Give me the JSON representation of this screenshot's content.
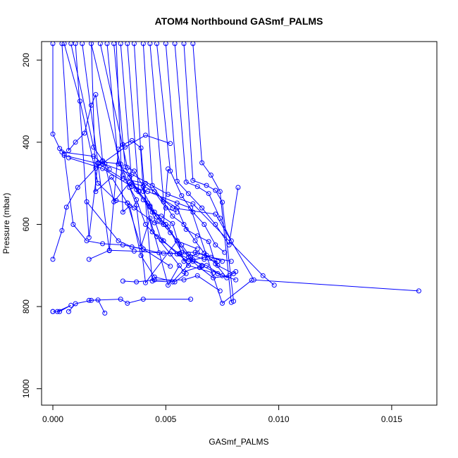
{
  "chart_data": {
    "type": "scatter",
    "title": "ATOM4 Northbound GASmf_PALMS",
    "xlabel": "GASmf_PALMS",
    "ylabel": "Pressure (mbar)",
    "xlim": [
      -0.0005,
      0.017
    ],
    "ylim": [
      1040,
      155
    ],
    "y_reversed": true,
    "xticks": [
      0.0,
      0.005,
      0.01,
      0.015
    ],
    "xtick_labels": [
      "0.000",
      "0.005",
      "0.010",
      "0.015"
    ],
    "yticks": [
      200,
      400,
      600,
      800,
      1000
    ],
    "ytick_labels": [
      "200",
      "400",
      "600",
      "800",
      "1000"
    ],
    "grid": false,
    "legend": "none",
    "marker": "open-circle",
    "series_color": "#0000ff",
    "series": [
      {
        "x": [
          0.0,
          0.0002,
          0.0008,
          0.0003,
          0.0
        ],
        "y": [
          812,
          812,
          797,
          812,
          812
        ]
      },
      {
        "x": [
          0.0007,
          0.001,
          0.0017,
          0.002,
          0.0023
        ],
        "y": [
          812,
          793,
          785,
          784,
          816
        ]
      },
      {
        "x": [
          0.0016,
          0.003,
          0.0033,
          0.004,
          0.0061
        ],
        "y": [
          785,
          782,
          792,
          782,
          782
        ]
      },
      {
        "x": [
          0.0,
          0.0004,
          0.0006,
          0.0011,
          0.0019,
          0.0032,
          0.0041,
          0.0052
        ],
        "y": [
          685,
          615,
          558,
          510,
          463,
          412,
          383,
          403
        ]
      },
      {
        "x": [
          0.0,
          0.0,
          0.0003,
          0.0005,
          0.0009,
          0.0015,
          0.0022,
          0.0031,
          0.004,
          0.0052
        ],
        "y": [
          160,
          380,
          415,
          428,
          600,
          640,
          647,
          650,
          660,
          702
        ]
      },
      {
        "x": [
          0.0004,
          0.0007,
          0.001,
          0.0014,
          0.0017,
          0.0019,
          0.0022,
          0.0025
        ],
        "y": [
          160,
          420,
          400,
          378,
          310,
          284,
          445,
          466
        ]
      },
      {
        "x": [
          0.0005,
          0.0012,
          0.002,
          0.0028,
          0.0033,
          0.0036,
          0.0045,
          0.0049,
          0.0051
        ],
        "y": [
          160,
          300,
          500,
          542,
          548,
          560,
          596,
          600,
          465
        ]
      },
      {
        "x": [
          0.0008,
          0.0018,
          0.0023,
          0.0027,
          0.0034,
          0.004,
          0.0045,
          0.005,
          0.0055
        ],
        "y": [
          160,
          412,
          452,
          545,
          498,
          507,
          520,
          560,
          570
        ]
      },
      {
        "x": [
          0.001,
          0.0016,
          0.002,
          0.0022,
          0.003,
          0.0037,
          0.0041,
          0.0055,
          0.0064
        ],
        "y": [
          160,
          632,
          450,
          448,
          453,
          553,
          742,
          640,
          660
        ]
      },
      {
        "x": [
          0.0013,
          0.0025,
          0.0029,
          0.0031,
          0.0035,
          0.0039,
          0.0044,
          0.0053,
          0.0062
        ],
        "y": [
          160,
          664,
          417,
          406,
          396,
          414,
          738,
          740,
          686
        ]
      },
      {
        "x": [
          0.0017,
          0.0031,
          0.0034,
          0.0037,
          0.0041,
          0.0046,
          0.0052,
          0.0058,
          0.0066
        ],
        "y": [
          160,
          480,
          510,
          540,
          600,
          630,
          672,
          715,
          702
        ]
      },
      {
        "x": [
          0.0021,
          0.0033,
          0.0036,
          0.004,
          0.0044,
          0.0049,
          0.0055,
          0.006,
          0.0067
        ],
        "y": [
          160,
          462,
          470,
          508,
          618,
          640,
          672,
          690,
          680
        ]
      },
      {
        "x": [
          0.0024,
          0.0029,
          0.0034,
          0.0038,
          0.0043,
          0.0048,
          0.0056,
          0.0062,
          0.0068,
          0.0075
        ],
        "y": [
          160,
          453,
          485,
          520,
          555,
          638,
          672,
          690,
          700,
          725
        ]
      },
      {
        "x": [
          0.0027,
          0.0032,
          0.0037,
          0.0042,
          0.0046,
          0.0051,
          0.0057,
          0.0063,
          0.0068,
          0.0075
        ],
        "y": [
          160,
          460,
          515,
          548,
          582,
          606,
          668,
          668,
          675,
          690
        ]
      },
      {
        "x": [
          0.003,
          0.0035,
          0.004,
          0.0044,
          0.0048,
          0.0053,
          0.0058,
          0.0064,
          0.007,
          0.0079
        ],
        "y": [
          160,
          500,
          540,
          570,
          580,
          598,
          690,
          670,
          680,
          690
        ]
      },
      {
        "x": [
          0.0033,
          0.0038,
          0.0043,
          0.0047,
          0.0052,
          0.0057,
          0.0061,
          0.0066,
          0.0073,
          0.0081
        ],
        "y": [
          160,
          520,
          558,
          590,
          620,
          650,
          680,
          700,
          720,
          735
        ]
      },
      {
        "x": [
          0.0036,
          0.004,
          0.0045,
          0.005,
          0.0055,
          0.006,
          0.0065,
          0.0071,
          0.0078
        ],
        "y": [
          160,
          520,
          570,
          600,
          640,
          680,
          705,
          730,
          725
        ]
      },
      {
        "x": [
          0.004,
          0.0044,
          0.0049,
          0.0053,
          0.0058,
          0.0063,
          0.0067,
          0.0073,
          0.008
        ],
        "y": [
          160,
          505,
          545,
          580,
          600,
          640,
          670,
          700,
          720
        ]
      },
      {
        "x": [
          0.0043,
          0.0049,
          0.0055,
          0.0059,
          0.0064,
          0.0069,
          0.0072,
          0.0077,
          0.0081
        ],
        "y": [
          160,
          540,
          560,
          612,
          628,
          642,
          696,
          730,
          715
        ]
      },
      {
        "x": [
          0.0046,
          0.0052,
          0.0057,
          0.0062,
          0.0067,
          0.0072,
          0.0076
        ],
        "y": [
          160,
          470,
          530,
          570,
          600,
          650,
          668
        ]
      },
      {
        "x": [
          0.005,
          0.0055,
          0.006,
          0.0066,
          0.0072,
          0.0078,
          0.0082
        ],
        "y": [
          160,
          495,
          525,
          560,
          600,
          650,
          510
        ]
      },
      {
        "x": [
          0.0054,
          0.0059,
          0.0064,
          0.0069,
          0.0074,
          0.0079
        ],
        "y": [
          160,
          497,
          508,
          525,
          585,
          640
        ]
      },
      {
        "x": [
          0.0058,
          0.0062,
          0.0068,
          0.0072,
          0.0075,
          0.008
        ],
        "y": [
          160,
          493,
          505,
          517,
          546,
          787
        ]
      },
      {
        "x": [
          0.0062,
          0.0066,
          0.007,
          0.0074,
          0.0079
        ],
        "y": [
          160,
          450,
          480,
          520,
          790
        ]
      },
      {
        "x": [
          0.0004,
          0.0018,
          0.0022,
          0.0035,
          0.0051,
          0.0062,
          0.0093,
          0.0098
        ],
        "y": [
          424,
          434,
          452,
          478,
          527,
          550,
          725,
          748
        ]
      },
      {
        "x": [
          0.0005,
          0.002,
          0.0031,
          0.0041,
          0.0053,
          0.0072,
          0.0089,
          0.0162
        ],
        "y": [
          432,
          452,
          489,
          500,
          560,
          575,
          735,
          762
        ]
      },
      {
        "x": [
          0.0007,
          0.0022,
          0.0035,
          0.0042,
          0.0055,
          0.0061,
          0.0075,
          0.0088
        ],
        "y": [
          438,
          464,
          508,
          520,
          548,
          560,
          792,
          736
        ]
      },
      {
        "x": [
          0.0015,
          0.0029,
          0.0035,
          0.004,
          0.0047,
          0.0056,
          0.006,
          0.0071
        ],
        "y": [
          545,
          640,
          655,
          660,
          669,
          671,
          700,
          718
        ]
      },
      {
        "x": [
          0.0016,
          0.0025,
          0.0036,
          0.0049,
          0.006,
          0.0067,
          0.0073
        ],
        "y": [
          685,
          663,
          665,
          670,
          672,
          685,
          690
        ]
      },
      {
        "x": [
          0.0031,
          0.0037,
          0.0045,
          0.0058,
          0.0064,
          0.0074
        ],
        "y": [
          738,
          740,
          735,
          735,
          725,
          762
        ]
      },
      {
        "x": [
          0.0017,
          0.0019,
          0.0026,
          0.0033,
          0.0039,
          0.0043,
          0.0051,
          0.0056
        ],
        "y": [
          150,
          520,
          485,
          548,
          655,
          585,
          748,
          700
        ]
      },
      {
        "x": [
          0.0028,
          0.0031,
          0.0034,
          0.0039,
          0.0045,
          0.0054,
          0.0059
        ],
        "y": [
          150,
          570,
          555,
          676,
          728,
          740,
          720
        ]
      }
    ]
  }
}
